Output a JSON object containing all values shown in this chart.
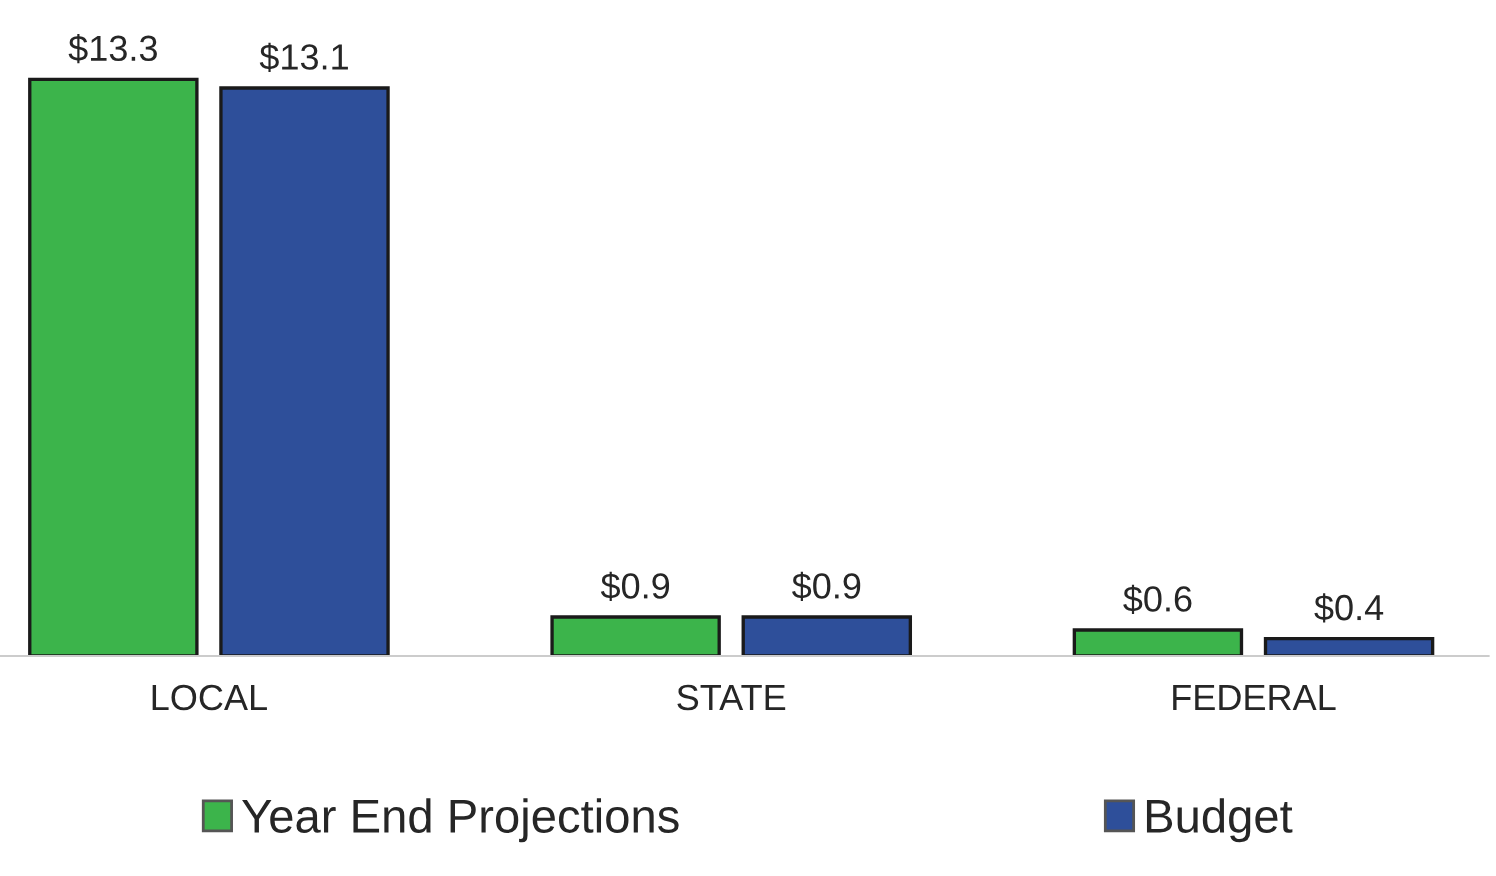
{
  "chart_data": {
    "type": "bar",
    "categories": [
      "LOCAL",
      "STATE",
      "FEDERAL"
    ],
    "series": [
      {
        "name": "Year End Projections",
        "color": "#3cb44b",
        "values": [
          13.3,
          0.9,
          0.6
        ],
        "value_labels": [
          "$13.3",
          "$0.9",
          "$0.6"
        ]
      },
      {
        "name": "Budget",
        "color": "#2e4f9a",
        "values": [
          13.1,
          0.9,
          0.4
        ],
        "value_labels": [
          "$13.1",
          "$0.9",
          "$0.4"
        ]
      }
    ],
    "legend": "bottom",
    "grid": false,
    "tick_labels": "x"
  }
}
